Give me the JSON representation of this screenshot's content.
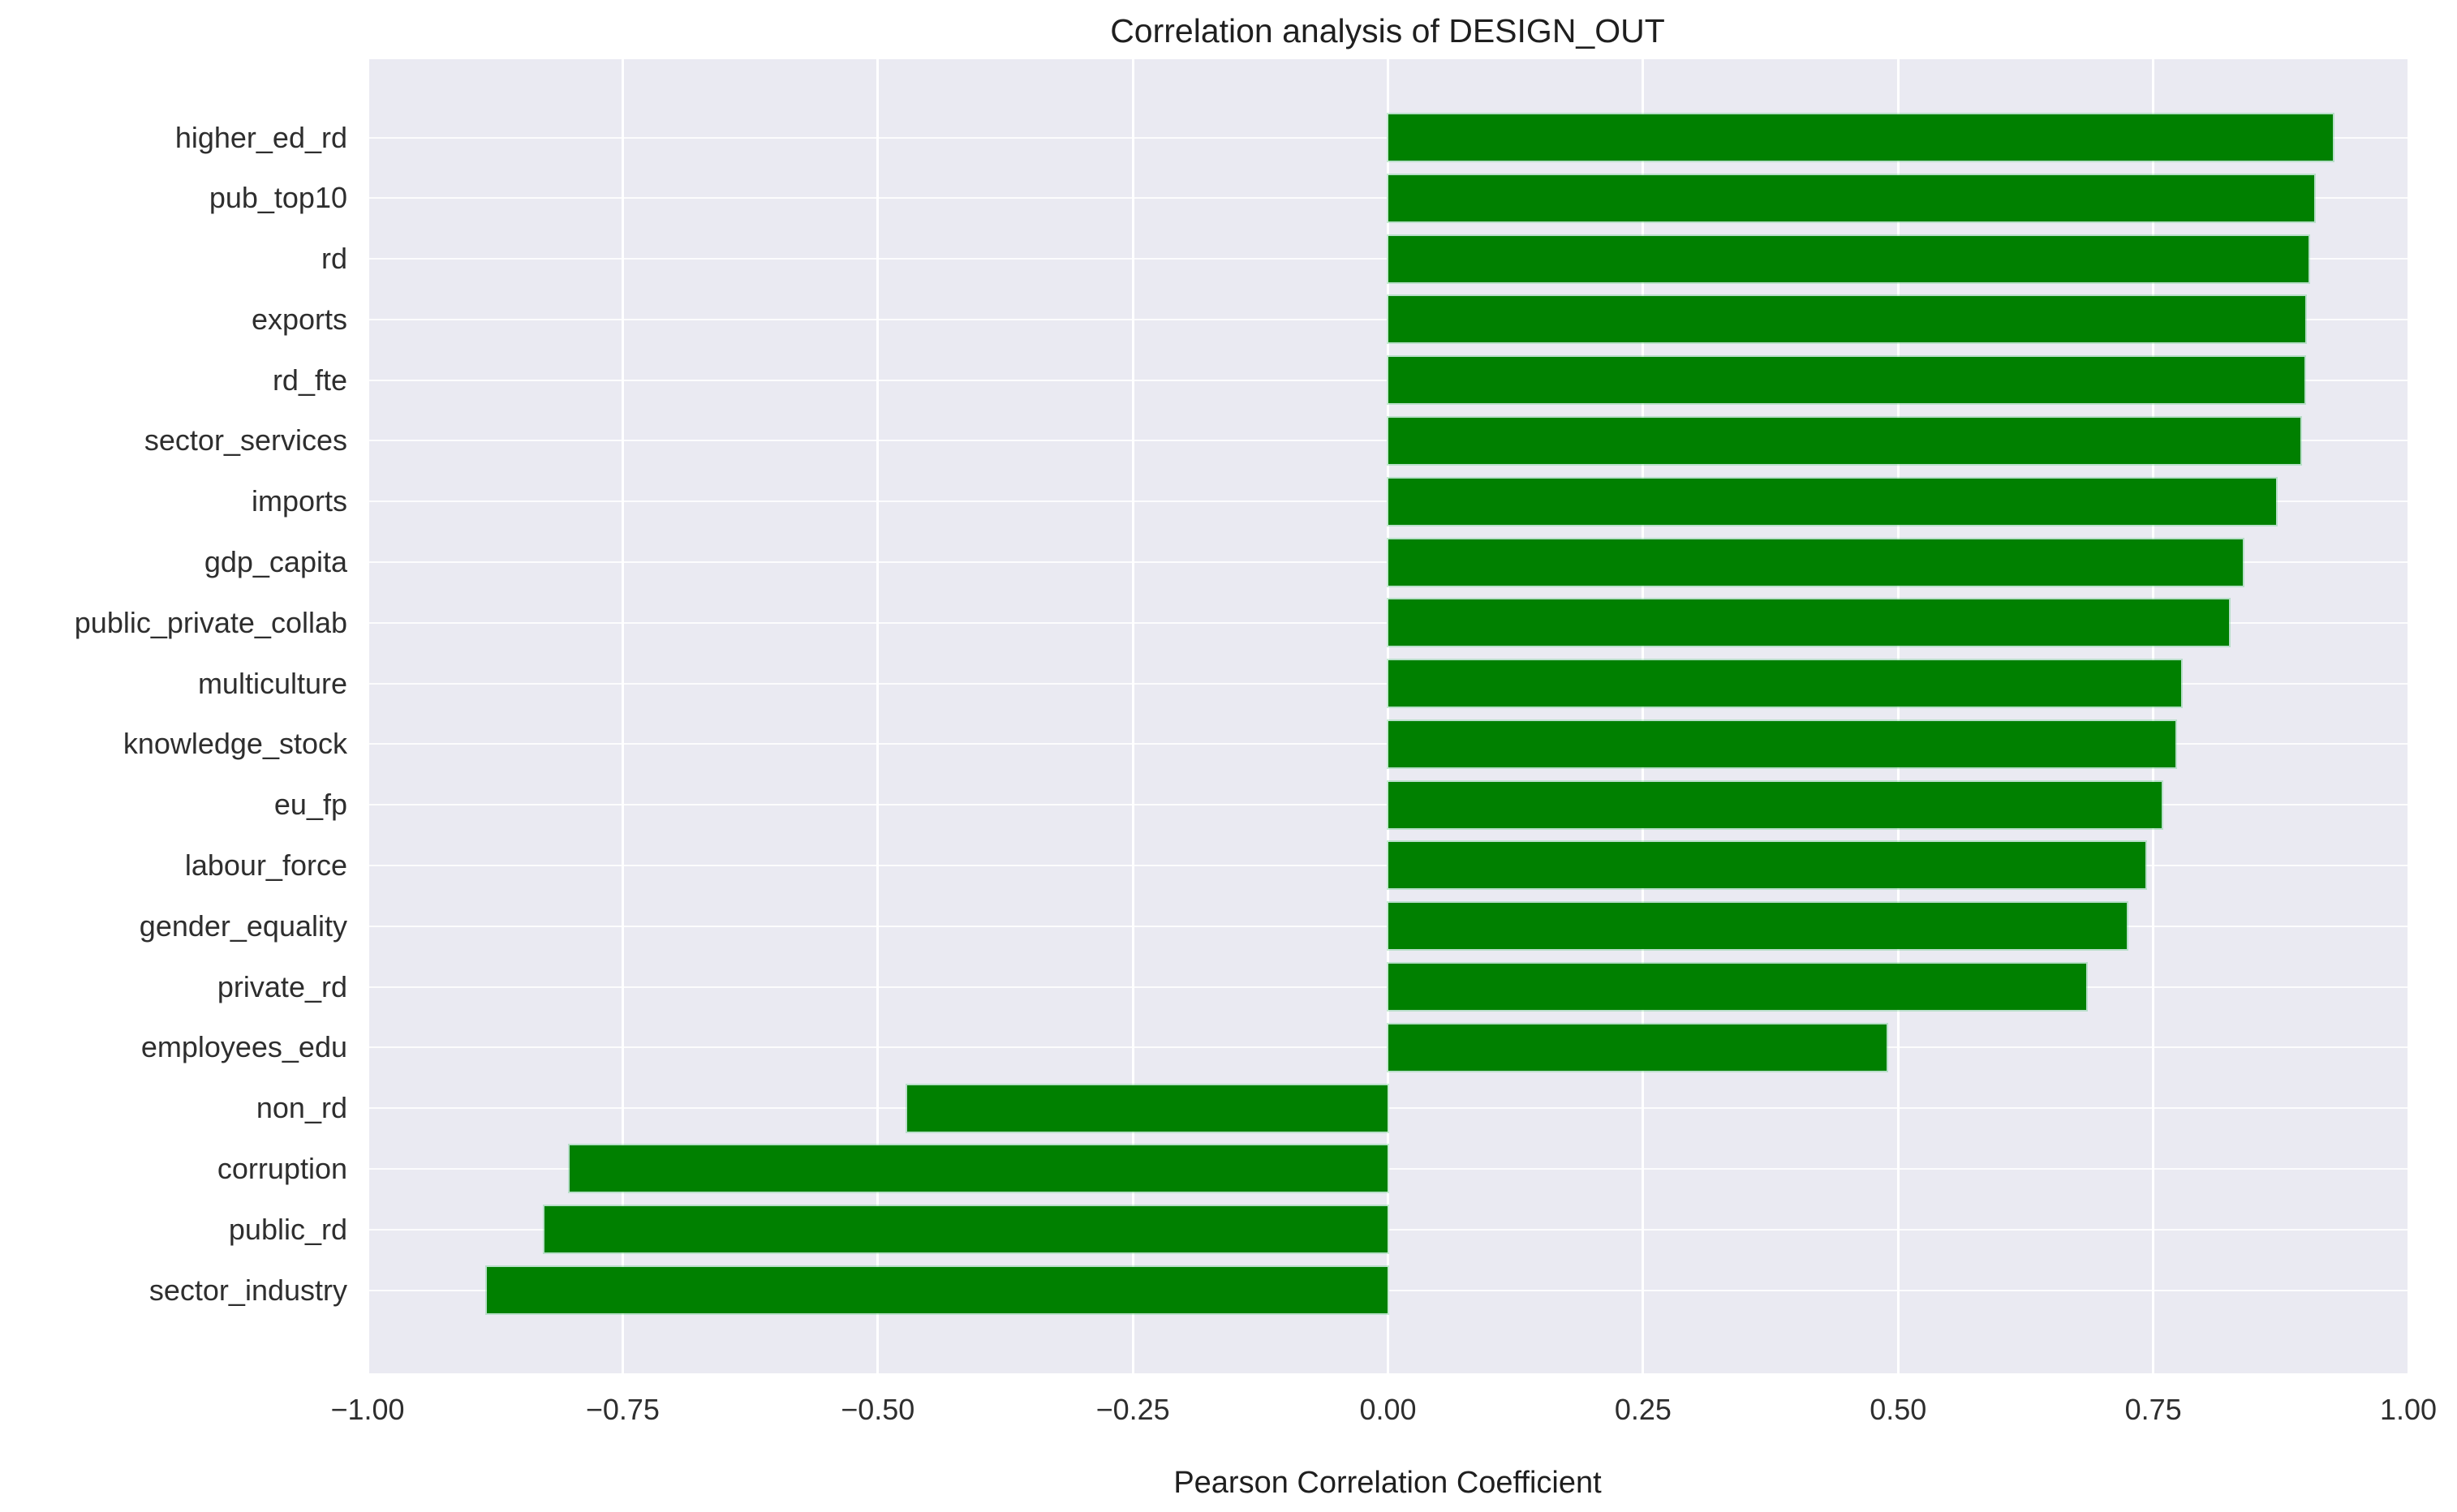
{
  "page": {
    "title": "Correlation analysis of DESIGN_OUT",
    "xlabel": "Pearson Correlation Coefficient"
  },
  "colors": {
    "bar": "#008000",
    "plot_background": "#eaeaf2",
    "grid": "#ffffff",
    "text": "#1f1f1f",
    "tick_text": "#2e2e2e"
  },
  "chart_data": {
    "type": "bar",
    "orientation": "horizontal",
    "title": "Correlation analysis of DESIGN_OUT",
    "xlabel": "Pearson Correlation Coefficient",
    "ylabel": "",
    "xlim": [
      -1.0,
      1.0
    ],
    "grid": true,
    "legend": null,
    "xticks": [
      -1.0,
      -0.75,
      -0.5,
      -0.25,
      0.0,
      0.25,
      0.5,
      0.75,
      1.0
    ],
    "xtick_labels": [
      "−1.00",
      "−0.75",
      "−0.50",
      "−0.25",
      "0.00",
      "0.25",
      "0.50",
      "0.75",
      "1.00"
    ],
    "categories": [
      "higher_ed_rd",
      "pub_top10",
      "rd",
      "exports",
      "rd_fte",
      "sector_services",
      "imports",
      "gdp_capita",
      "public_private_collab",
      "multiculture",
      "knowledge_stock",
      "eu_fp",
      "labour_force",
      "gender_equality",
      "private_rd",
      "employees_edu",
      "non_rd",
      "corruption",
      "public_rd",
      "sector_industry"
    ],
    "values": [
      0.926,
      0.908,
      0.902,
      0.899,
      0.898,
      0.894,
      0.87,
      0.838,
      0.824,
      0.777,
      0.772,
      0.758,
      0.742,
      0.724,
      0.684,
      0.489,
      -0.471,
      -0.802,
      -0.827,
      -0.883
    ]
  }
}
